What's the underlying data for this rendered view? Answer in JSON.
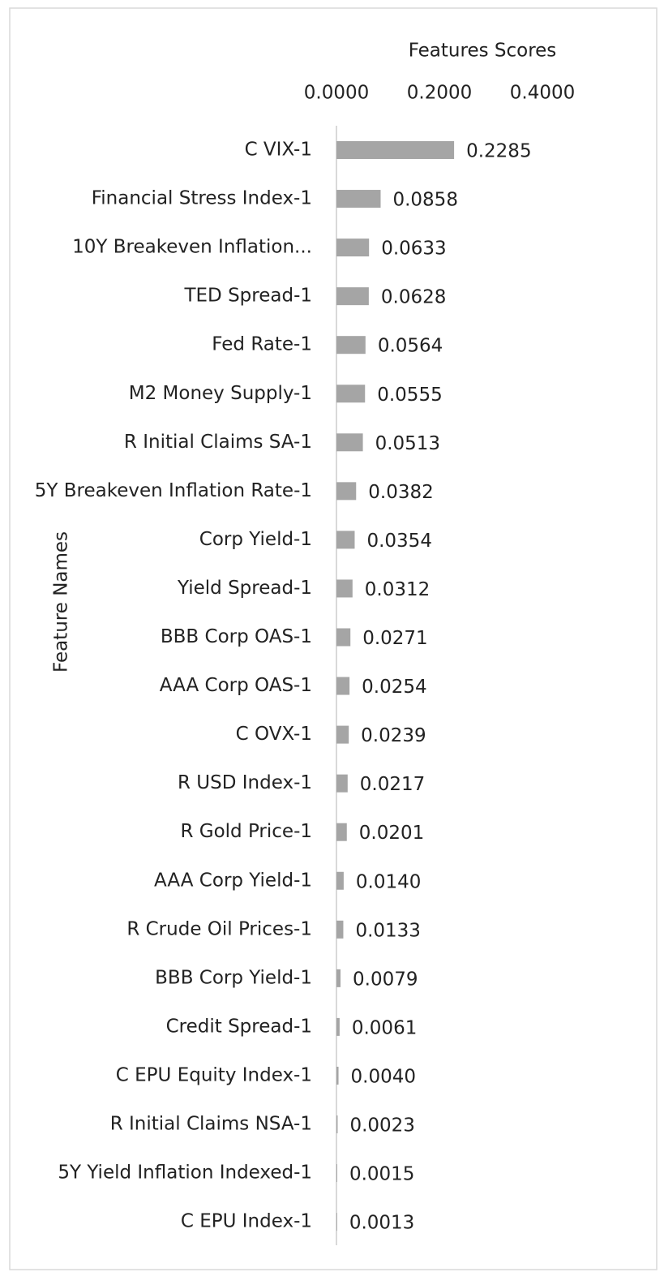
{
  "chart_data": {
    "type": "barh",
    "x_label": "Features Scores",
    "y_label": "Feature Names",
    "categories": [
      "C VIX-1",
      "Financial Stress Index-1",
      "10Y Breakeven Inflation...",
      "TED Spread-1",
      "Fed Rate-1",
      "M2 Money Supply-1",
      "R Initial Claims SA-1",
      "5Y Breakeven Inflation Rate-1",
      "Corp Yield-1",
      "Yield Spread-1",
      "BBB Corp OAS-1",
      "AAA Corp OAS-1",
      "C OVX-1",
      "R USD Index-1",
      "R Gold Price-1",
      "AAA Corp Yield-1",
      "R Crude Oil Prices-1",
      "BBB Corp Yield-1",
      "Credit Spread-1",
      "C EPU Equity Index-1",
      "R Initial Claims NSA-1",
      "5Y Yield Inflation Indexed-1",
      "C EPU Index-1"
    ],
    "values": [
      0.2285,
      0.0858,
      0.0633,
      0.0628,
      0.0564,
      0.0555,
      0.0513,
      0.0382,
      0.0354,
      0.0312,
      0.0271,
      0.0254,
      0.0239,
      0.0217,
      0.0201,
      0.014,
      0.0133,
      0.0079,
      0.0061,
      0.004,
      0.0023,
      0.0015,
      0.0013
    ],
    "value_labels": [
      "0.2285",
      "0.0858",
      "0.0633",
      "0.0628",
      "0.0564",
      "0.0555",
      "0.0513",
      "0.0382",
      "0.0354",
      "0.0312",
      "0.0271",
      "0.0254",
      "0.0239",
      "0.0217",
      "0.0201",
      "0.0140",
      "0.0133",
      "0.0079",
      "0.0061",
      "0.0040",
      "0.0023",
      "0.0015",
      "0.0013"
    ],
    "color": "#a5a5a5",
    "xlim": [
      0,
      0.6
    ],
    "xticks": [
      {
        "value": 0,
        "label": "0.0000"
      },
      {
        "value": 0.2,
        "label": "0.2000"
      },
      {
        "value": 0.4,
        "label": "0.4000"
      }
    ]
  }
}
